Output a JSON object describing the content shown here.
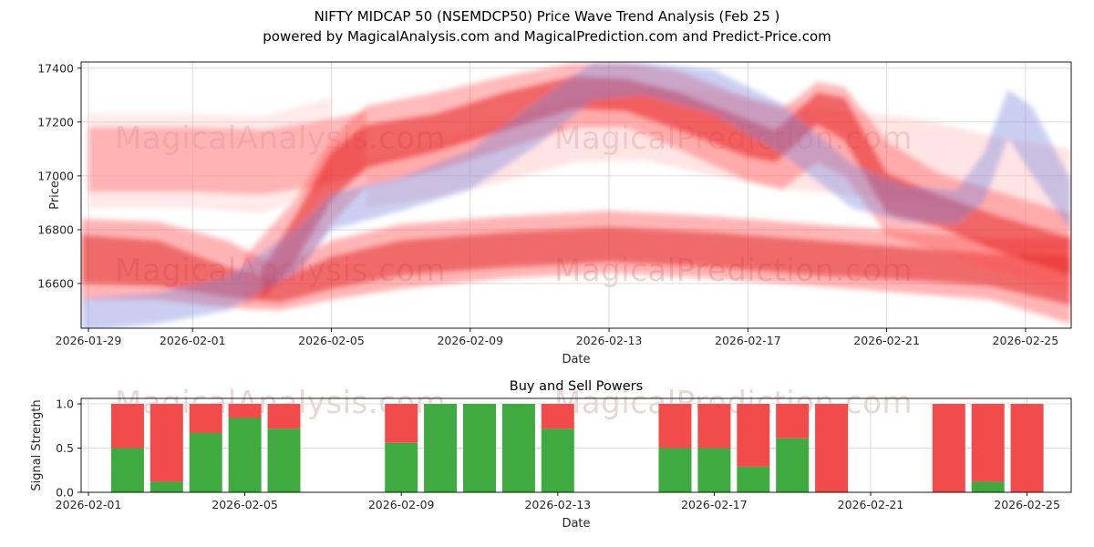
{
  "header": {
    "title": "NIFTY MIDCAP 50 (NSEMDCP50) Price Wave Trend Analysis (Feb 25 )",
    "subtitle": "powered by MagicalAnalysis.com and MagicalPrediction.com and Predict-Price.com"
  },
  "watermarks": {
    "analysis": "MagicalAnalysis.com",
    "prediction": "MagicalPrediction.com"
  },
  "colors": {
    "buy": "#3faa3f",
    "sell": "#f14b4b",
    "grid": "#dcdcdc",
    "axis": "#000000",
    "tick_text": "#262626",
    "watermark": "rgba(198,160,160,0.42)"
  },
  "chart_data": [
    {
      "type": "area",
      "name": "price_wave",
      "title": "",
      "xlabel": "Date",
      "ylabel": "Price",
      "x_epoch": "2026-01-29",
      "grid": true,
      "ylim": [
        16434,
        17423
      ],
      "yticks": [
        16600,
        16800,
        17000,
        17200,
        17400
      ],
      "xticks": [
        {
          "day": 0,
          "label": "2026-01-29"
        },
        {
          "day": 3,
          "label": "2026-02-01"
        },
        {
          "day": 7,
          "label": "2026-02-05"
        },
        {
          "day": 11,
          "label": "2026-02-09"
        },
        {
          "day": 15,
          "label": "2026-02-13"
        },
        {
          "day": 19,
          "label": "2026-02-17"
        },
        {
          "day": 23,
          "label": "2026-02-21"
        },
        {
          "day": 27,
          "label": "2026-02-25"
        }
      ],
      "bands": [
        {
          "name": "pink-left-soft",
          "color": "#ffb6b6",
          "opacity": 0.3,
          "points": [
            [
              0,
              16880,
              17230
            ],
            [
              3,
              16880,
              17230
            ],
            [
              5,
              16860,
              17220
            ],
            [
              7,
              16960,
              17290
            ]
          ]
        },
        {
          "name": "pink-wide-right",
          "color": "#ffaaaa",
          "opacity": 0.32,
          "points": [
            [
              8,
              16880,
              17060
            ],
            [
              10,
              16920,
              17120
            ],
            [
              12,
              16980,
              17200
            ],
            [
              14,
              17050,
              17290
            ],
            [
              16,
              17060,
              17330
            ],
            [
              18,
              17000,
              17310
            ],
            [
              20,
              16950,
              17270
            ],
            [
              22,
              16930,
              17240
            ],
            [
              24,
              16900,
              17210
            ],
            [
              26,
              16850,
              17150
            ],
            [
              28.3,
              16760,
              17100
            ]
          ]
        },
        {
          "name": "upper-left-flat",
          "color": "#ff7070",
          "opacity": 0.45,
          "points": [
            [
              0,
              16940,
              17180
            ],
            [
              3,
              16940,
              17180
            ],
            [
              5,
              16930,
              17170
            ],
            [
              6.5,
              16960,
              17200
            ],
            [
              8,
              17010,
              17240
            ]
          ]
        },
        {
          "name": "bottom-outer",
          "color": "#ff4d4d",
          "opacity": 0.42,
          "points": [
            [
              -0.2,
              16540,
              16840
            ],
            [
              2,
              16540,
              16830
            ],
            [
              4,
              16510,
              16760
            ],
            [
              5.5,
              16500,
              16660
            ],
            [
              7,
              16540,
              16760
            ],
            [
              9,
              16580,
              16820
            ],
            [
              12,
              16620,
              16850
            ],
            [
              15,
              16640,
              16870
            ],
            [
              18,
              16620,
              16850
            ],
            [
              21,
              16590,
              16820
            ],
            [
              24,
              16560,
              16790
            ],
            [
              26,
              16540,
              16770
            ],
            [
              28.3,
              16450,
              16770
            ]
          ]
        },
        {
          "name": "bottom-core",
          "color": "#e01f1f",
          "opacity": 0.5,
          "points": [
            [
              -0.2,
              16600,
              16780
            ],
            [
              2,
              16590,
              16760
            ],
            [
              4,
              16550,
              16660
            ],
            [
              5.5,
              16530,
              16610
            ],
            [
              7,
              16580,
              16700
            ],
            [
              9,
              16630,
              16760
            ],
            [
              12,
              16660,
              16790
            ],
            [
              15,
              16680,
              16810
            ],
            [
              18,
              16660,
              16790
            ],
            [
              21,
              16630,
              16760
            ],
            [
              24,
              16610,
              16730
            ],
            [
              26,
              16590,
              16710
            ],
            [
              28.3,
              16520,
              16700
            ]
          ]
        },
        {
          "name": "hump-outer",
          "color": "#ff5555",
          "opacity": 0.4,
          "points": [
            [
              4.5,
              16520,
              16700
            ],
            [
              6,
              16620,
              16920
            ],
            [
              7,
              16820,
              17140
            ],
            [
              8,
              16960,
              17260
            ],
            [
              10,
              17020,
              17310
            ],
            [
              12,
              17100,
              17370
            ],
            [
              14,
              17180,
              17420
            ],
            [
              15.5,
              17180,
              17420
            ],
            [
              17,
              17100,
              17390
            ],
            [
              19,
              16980,
              17290
            ],
            [
              20,
              16950,
              17250
            ],
            [
              21,
              17050,
              17350
            ],
            [
              21.8,
              17000,
              17330
            ],
            [
              23,
              16780,
              17130
            ],
            [
              24.5,
              16720,
              17010
            ],
            [
              26,
              16650,
              16950
            ],
            [
              28.3,
              16560,
              16860
            ]
          ]
        },
        {
          "name": "hump-core",
          "color": "#e62222",
          "opacity": 0.55,
          "points": [
            [
              5,
              16540,
              16650
            ],
            [
              6,
              16690,
              16860
            ],
            [
              7,
              16910,
              17090
            ],
            [
              8,
              17030,
              17190
            ],
            [
              10,
              17090,
              17230
            ],
            [
              12,
              17170,
              17310
            ],
            [
              14,
              17250,
              17370
            ],
            [
              15.5,
              17240,
              17360
            ],
            [
              17,
              17170,
              17310
            ],
            [
              19,
              17070,
              17210
            ],
            [
              19.8,
              17050,
              17170
            ],
            [
              21,
              17190,
              17310
            ],
            [
              21.8,
              17130,
              17290
            ],
            [
              23,
              16860,
              17010
            ],
            [
              24.5,
              16810,
              16930
            ],
            [
              26,
              16730,
              16860
            ],
            [
              28.3,
              16630,
              16770
            ]
          ]
        },
        {
          "name": "blue-main",
          "color": "#7b86dd",
          "opacity": 0.4,
          "points": [
            [
              -0.2,
              16420,
              16545
            ],
            [
              2,
              16450,
              16565
            ],
            [
              4,
              16500,
              16625
            ],
            [
              6,
              16640,
              16805
            ],
            [
              7,
              16800,
              16935
            ],
            [
              9,
              16870,
              16995
            ],
            [
              11,
              16950,
              17095
            ],
            [
              13,
              17120,
              17285
            ],
            [
              14.5,
              17280,
              17420
            ],
            [
              16,
              17300,
              17420
            ],
            [
              18,
              17230,
              17395
            ],
            [
              20,
              17080,
              17265
            ],
            [
              22,
              16880,
              17045
            ],
            [
              23.5,
              16830,
              16965
            ],
            [
              25,
              16820,
              16945
            ],
            [
              25.8,
              16900,
              17085
            ],
            [
              26.5,
              17140,
              17320
            ],
            [
              27.2,
              17000,
              17255
            ],
            [
              28.3,
              16800,
              16985
            ]
          ]
        }
      ]
    },
    {
      "type": "bar",
      "name": "buy_sell_powers",
      "title": "Buy and Sell Powers",
      "xlabel": "Date",
      "ylabel": "Signal Strength",
      "x_epoch": "2026-02-01",
      "grid": true,
      "stacked": true,
      "ylim": [
        0,
        1.06
      ],
      "yticks": [
        "0.0",
        "0.5",
        "1.0"
      ],
      "xticks": [
        {
          "day": 0,
          "label": "2026-02-01"
        },
        {
          "day": 4,
          "label": "2026-02-05"
        },
        {
          "day": 8,
          "label": "2026-02-09"
        },
        {
          "day": 12,
          "label": "2026-02-13"
        },
        {
          "day": 16,
          "label": "2026-02-17"
        },
        {
          "day": 20,
          "label": "2026-02-21"
        },
        {
          "day": 24,
          "label": "2026-02-25"
        }
      ],
      "categories": [
        "2026-02-02",
        "2026-02-03",
        "2026-02-04",
        "2026-02-05",
        "2026-02-06",
        "2026-02-09",
        "2026-02-10",
        "2026-02-11",
        "2026-02-12",
        "2026-02-13",
        "2026-02-16",
        "2026-02-17",
        "2026-02-18",
        "2026-02-19",
        "2026-02-20",
        "2026-02-23",
        "2026-02-24",
        "2026-02-25"
      ],
      "category_days": [
        1,
        2,
        3,
        4,
        5,
        8,
        9,
        10,
        11,
        12,
        15,
        16,
        17,
        18,
        19,
        22,
        23,
        24
      ],
      "series": [
        {
          "name": "Buy",
          "color": "#3faa3f",
          "values": [
            0.5,
            0.12,
            0.67,
            0.84,
            0.72,
            0.56,
            1.0,
            1.0,
            1.0,
            0.72,
            0.5,
            0.5,
            0.29,
            0.61,
            0.0,
            0.0,
            0.12,
            0.0
          ]
        },
        {
          "name": "Sell",
          "color": "#f14b4b",
          "values": [
            0.5,
            0.88,
            0.33,
            0.16,
            0.28,
            0.44,
            0.0,
            0.0,
            0.0,
            0.28,
            0.5,
            0.5,
            0.71,
            0.39,
            1.0,
            1.0,
            0.88,
            1.0
          ]
        }
      ]
    }
  ]
}
